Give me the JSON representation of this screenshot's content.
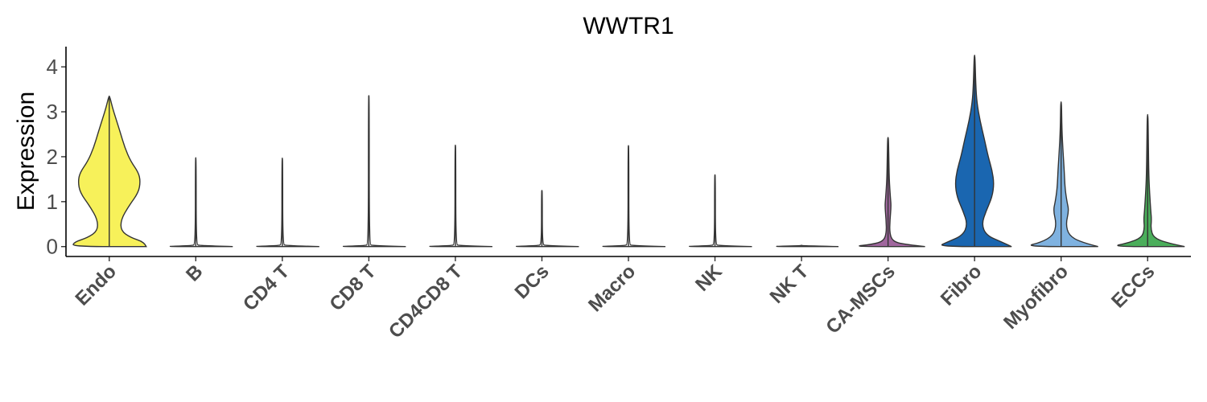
{
  "chart_data": {
    "type": "violin",
    "title": "WWTR1",
    "xlabel": "",
    "ylabel": "Expression",
    "ylim": [
      -0.22,
      4.45
    ],
    "yticks": [
      0,
      1,
      2,
      3,
      4
    ],
    "ytick_labels": [
      "0",
      "1",
      "2",
      "3",
      "4"
    ],
    "categories": [
      "Endo",
      "B",
      "CD4 T",
      "CD8 T",
      "CD4CD8 T",
      "DCs",
      "Macro",
      "NK",
      "NK T",
      "CA-MSCs",
      "Fibro",
      "Myofibro",
      "ECCs"
    ],
    "colors": [
      "#F7F15A",
      "#F2F2F2",
      "#F2F2F2",
      "#F2F2F2",
      "#F2F2F2",
      "#F2F2F2",
      "#F2F2F2",
      "#F2F2F2",
      "#F2F2F2",
      "#A0679E",
      "#1A66B0",
      "#7FB2E0",
      "#4BAE5B"
    ],
    "max_values": [
      3.35,
      1.98,
      1.97,
      3.36,
      2.26,
      1.25,
      2.25,
      1.6,
      0,
      2.43,
      4.26,
      3.22,
      2.94
    ],
    "density_profiles": [
      [
        [
          0,
          0.95
        ],
        [
          0.1,
          0.9
        ],
        [
          0.2,
          0.55
        ],
        [
          0.35,
          0.3
        ],
        [
          0.6,
          0.3
        ],
        [
          0.9,
          0.5
        ],
        [
          1.2,
          0.75
        ],
        [
          1.45,
          0.8
        ],
        [
          1.65,
          0.75
        ],
        [
          1.9,
          0.55
        ],
        [
          2.2,
          0.4
        ],
        [
          2.55,
          0.28
        ],
        [
          2.85,
          0.17
        ],
        [
          3.1,
          0.08
        ],
        [
          3.35,
          0.01
        ]
      ],
      [
        [
          0,
          0.95
        ],
        [
          0.02,
          0.1
        ],
        [
          0.05,
          0.01
        ],
        [
          1.98,
          0.01
        ]
      ],
      [
        [
          0,
          0.95
        ],
        [
          0.02,
          0.1
        ],
        [
          0.05,
          0.01
        ],
        [
          1.97,
          0.01
        ]
      ],
      [
        [
          0,
          0.95
        ],
        [
          0.02,
          0.1
        ],
        [
          0.05,
          0.01
        ],
        [
          3.36,
          0.01
        ]
      ],
      [
        [
          0,
          0.95
        ],
        [
          0.02,
          0.1
        ],
        [
          0.05,
          0.01
        ],
        [
          2.26,
          0.01
        ]
      ],
      [
        [
          0,
          0.95
        ],
        [
          0.02,
          0.1
        ],
        [
          0.05,
          0.01
        ],
        [
          1.25,
          0.01
        ]
      ],
      [
        [
          0,
          0.95
        ],
        [
          0.02,
          0.1
        ],
        [
          0.05,
          0.01
        ],
        [
          2.25,
          0.01
        ]
      ],
      [
        [
          0,
          0.95
        ],
        [
          0.02,
          0.1
        ],
        [
          0.05,
          0.01
        ],
        [
          1.6,
          0.01
        ]
      ],
      [
        [
          0,
          0.95
        ],
        [
          0.02,
          0.02
        ],
        [
          0.03,
          0
        ]
      ],
      [
        [
          0,
          0.95
        ],
        [
          0.05,
          0.4
        ],
        [
          0.12,
          0.12
        ],
        [
          0.3,
          0.04
        ],
        [
          0.6,
          0.05
        ],
        [
          0.9,
          0.08
        ],
        [
          1.1,
          0.06
        ],
        [
          1.5,
          0.03
        ],
        [
          2.0,
          0.02
        ],
        [
          2.43,
          0.01
        ]
      ],
      [
        [
          0,
          0.95
        ],
        [
          0.1,
          0.7
        ],
        [
          0.25,
          0.3
        ],
        [
          0.5,
          0.18
        ],
        [
          0.8,
          0.3
        ],
        [
          1.1,
          0.45
        ],
        [
          1.4,
          0.5
        ],
        [
          1.7,
          0.45
        ],
        [
          2.0,
          0.35
        ],
        [
          2.4,
          0.25
        ],
        [
          2.8,
          0.14
        ],
        [
          3.2,
          0.06
        ],
        [
          3.6,
          0.03
        ],
        [
          4.26,
          0.01
        ]
      ],
      [
        [
          0,
          0.95
        ],
        [
          0.1,
          0.5
        ],
        [
          0.25,
          0.2
        ],
        [
          0.5,
          0.12
        ],
        [
          0.8,
          0.2
        ],
        [
          1.0,
          0.15
        ],
        [
          1.3,
          0.1
        ],
        [
          1.7,
          0.08
        ],
        [
          2.1,
          0.05
        ],
        [
          2.6,
          0.02
        ],
        [
          3.22,
          0.01
        ]
      ],
      [
        [
          0,
          0.95
        ],
        [
          0.08,
          0.5
        ],
        [
          0.2,
          0.15
        ],
        [
          0.4,
          0.08
        ],
        [
          0.6,
          0.1
        ],
        [
          0.8,
          0.08
        ],
        [
          1.2,
          0.05
        ],
        [
          1.6,
          0.03
        ],
        [
          2.2,
          0.02
        ],
        [
          2.94,
          0.01
        ]
      ]
    ]
  }
}
